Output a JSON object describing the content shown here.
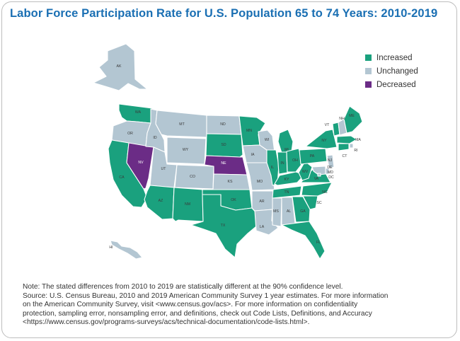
{
  "title": "Labor Force Participation Rate for U.S. Population 65 to 74 Years: 2010-2019",
  "legend": [
    {
      "label": "Increased",
      "color": "#1aa17e"
    },
    {
      "label": "Unchanged",
      "color": "#b3c6d2"
    },
    {
      "label": "Decreased",
      "color": "#6b2c86"
    }
  ],
  "states": {
    "AK": "Unchanged",
    "HI": "Unchanged",
    "WA": "Increased",
    "OR": "Unchanged",
    "CA": "Increased",
    "NV": "Decreased",
    "ID": "Unchanged",
    "MT": "Unchanged",
    "WY": "Unchanged",
    "UT": "Unchanged",
    "AZ": "Increased",
    "CO": "Unchanged",
    "NM": "Increased",
    "ND": "Unchanged",
    "SD": "Increased",
    "NE": "Decreased",
    "KS": "Unchanged",
    "OK": "Increased",
    "TX": "Increased",
    "MN": "Increased",
    "IA": "Unchanged",
    "MO": "Unchanged",
    "AR": "Unchanged",
    "LA": "Unchanged",
    "WI": "Unchanged",
    "IL": "Increased",
    "MI": "Increased",
    "IN": "Increased",
    "OH": "Increased",
    "KY": "Increased",
    "TN": "Increased",
    "MS": "Unchanged",
    "AL": "Unchanged",
    "GA": "Increased",
    "FL": "Increased",
    "SC": "Increased",
    "NC": "Increased",
    "VA": "Increased",
    "WV": "Increased",
    "PA": "Increased",
    "NY": "Increased",
    "VT": "Increased",
    "NH": "Unchanged",
    "ME": "Increased",
    "MA": "Increased",
    "RI": "Unchanged",
    "CT": "Increased",
    "NJ": "Unchanged",
    "DE": "Unchanged",
    "MD": "Unchanged",
    "DC": "Unchanged"
  },
  "notes": {
    "line1": "Note: The stated differences from 2010 to 2019 are statistically different at the 90% confidence level.",
    "line2": "Source: U.S. Census Bureau, 2010 and 2019 American Community Survey 1 year estimates. For more information",
    "line3": "on the American Community Survey, visit <www.census.gov/acs>. For more information on confidentiality",
    "line4": "protection, sampling error, nonsampling error, and definitions, check out Code Lists, Definitions, and Accuracy",
    "line5": "<https://www.census.gov/programs-surveys/acs/technical-documentation/code-lists.html>."
  }
}
